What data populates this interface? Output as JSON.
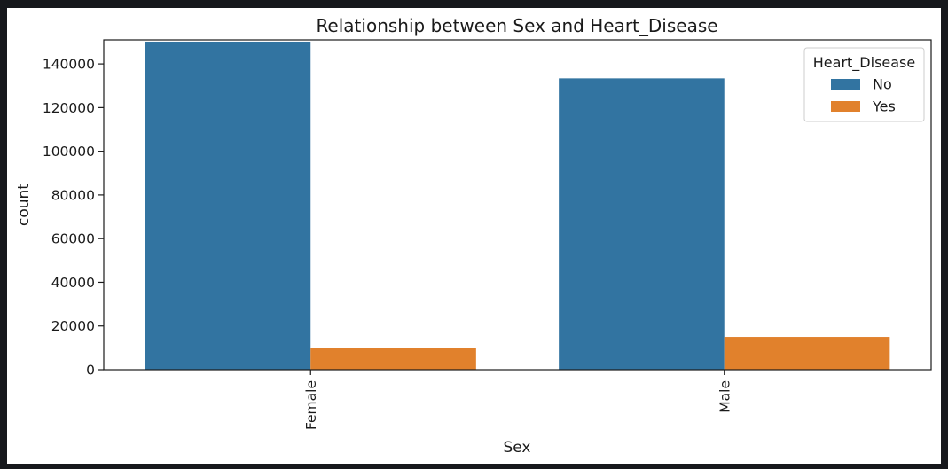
{
  "chart_data": {
    "type": "bar",
    "title": "Relationship between Sex and Heart_Disease",
    "xlabel": "Sex",
    "ylabel": "count",
    "categories": [
      "Female",
      "Male"
    ],
    "series": [
      {
        "name": "No",
        "color": "#3274a1",
        "values": [
          150200,
          133400
        ]
      },
      {
        "name": "Yes",
        "color": "#e1812c",
        "values": [
          9900,
          15000
        ]
      }
    ],
    "ylim": [
      0,
      151000
    ],
    "yticks": [
      0,
      20000,
      40000,
      60000,
      80000,
      100000,
      120000,
      140000
    ],
    "ytick_labels": [
      "0",
      "20000",
      "40000",
      "60000",
      "80000",
      "100000",
      "120000",
      "140000"
    ],
    "legend": {
      "title": "Heart_Disease",
      "position": "top-right"
    },
    "grid": false
  }
}
